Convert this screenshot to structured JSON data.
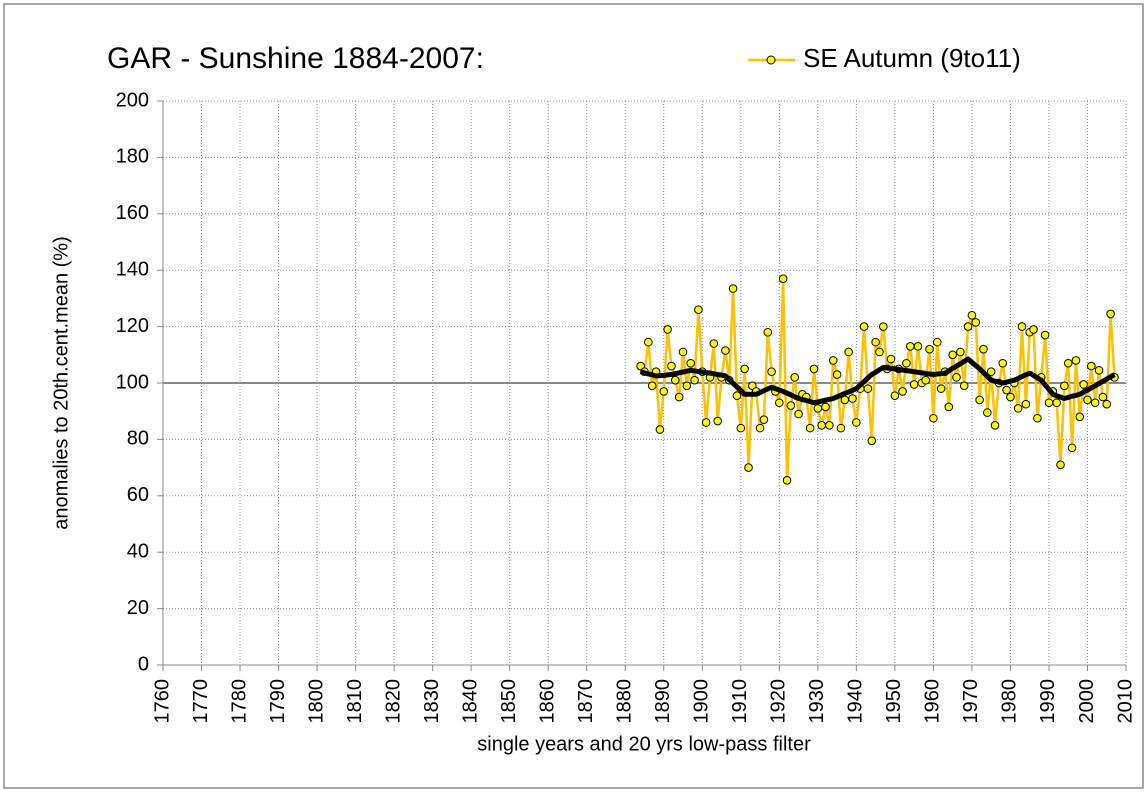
{
  "chart_data": {
    "type": "line",
    "title": "GAR - Sunshine 1884-2007:",
    "xlabel": "single years and 20 yrs low-pass filter",
    "ylabel": "anomalies to 20th.cent.mean (%)",
    "x": [
      1884,
      1885,
      1886,
      1887,
      1888,
      1889,
      1890,
      1891,
      1892,
      1893,
      1894,
      1895,
      1896,
      1897,
      1898,
      1899,
      1900,
      1901,
      1902,
      1903,
      1904,
      1905,
      1906,
      1907,
      1908,
      1909,
      1910,
      1911,
      1912,
      1913,
      1914,
      1915,
      1916,
      1917,
      1918,
      1919,
      1920,
      1921,
      1922,
      1923,
      1924,
      1925,
      1926,
      1927,
      1928,
      1929,
      1930,
      1931,
      1932,
      1933,
      1934,
      1935,
      1936,
      1937,
      1938,
      1939,
      1940,
      1941,
      1942,
      1943,
      1944,
      1945,
      1946,
      1947,
      1948,
      1949,
      1950,
      1951,
      1952,
      1953,
      1954,
      1955,
      1956,
      1957,
      1958,
      1959,
      1960,
      1961,
      1962,
      1963,
      1964,
      1965,
      1966,
      1967,
      1968,
      1969,
      1970,
      1971,
      1972,
      1973,
      1974,
      1975,
      1976,
      1977,
      1978,
      1979,
      1980,
      1981,
      1982,
      1983,
      1984,
      1985,
      1986,
      1987,
      1988,
      1989,
      1990,
      1991,
      1992,
      1993,
      1994,
      1995,
      1996,
      1997,
      1998,
      1999,
      2000,
      2001,
      2002,
      2003,
      2004,
      2005,
      2006,
      2007
    ],
    "series": [
      {
        "name": "SE Autumn (9to11)",
        "color": "#ffc000",
        "marker_color": "#ffff00",
        "markers": true,
        "values": [
          106,
          104,
          114.5,
          99,
          104,
          83.5,
          97,
          119,
          106,
          101,
          95,
          111,
          99,
          107,
          101,
          126,
          104,
          86,
          102,
          114,
          86.5,
          102,
          111.5,
          101,
          133.5,
          95.5,
          84,
          105,
          70,
          99,
          97,
          84,
          87,
          118,
          104,
          97,
          93,
          137,
          65.5,
          92,
          102,
          89,
          96,
          95,
          84,
          105,
          91,
          85,
          91.5,
          85,
          108,
          103,
          84,
          94,
          111,
          94.5,
          86,
          98,
          120,
          98,
          79.5,
          114.5,
          111,
          120,
          105,
          108.5,
          95.5,
          105,
          97,
          107,
          113,
          99.5,
          113,
          100,
          101,
          112,
          87.5,
          114.5,
          98,
          104,
          91.5,
          110,
          102,
          111,
          99,
          120,
          124,
          121.5,
          94,
          112,
          89.5,
          104,
          85,
          100,
          107,
          97.5,
          95,
          100,
          91,
          120,
          92.5,
          118,
          119,
          87.5,
          102,
          117,
          93,
          97,
          93,
          71,
          99,
          107,
          77,
          108,
          88,
          99.5,
          94,
          106,
          93,
          104.5,
          95,
          92.5,
          124.5,
          102
        ]
      },
      {
        "color": "#000000",
        "markers": false,
        "values": [
          104,
          103.6,
          103.2,
          102.9,
          102.5,
          102.6,
          102.7,
          102.9,
          103,
          103.3,
          103.6,
          103.9,
          104.2,
          104.5,
          104.3,
          104.1,
          103.9,
          103.7,
          103.5,
          103.3,
          103,
          102.8,
          102.5,
          101.2,
          99.9,
          98.6,
          97.3,
          96,
          96,
          96,
          96,
          96.6,
          97.3,
          97.9,
          98.5,
          98,
          97.5,
          97,
          96.4,
          95.8,
          95.1,
          94.5,
          94.1,
          93.8,
          93.4,
          93,
          93.3,
          93.6,
          93.9,
          94.2,
          94.5,
          95.1,
          95.7,
          96.3,
          96.8,
          97.4,
          98,
          99.3,
          100.5,
          101.8,
          103,
          103.8,
          104.7,
          105.5,
          105.3,
          105.2,
          105,
          104.8,
          104.6,
          104.4,
          104.2,
          104,
          103.8,
          103.6,
          103.4,
          103.2,
          103,
          103.2,
          103.3,
          103.5,
          104.3,
          105.2,
          106,
          106.8,
          107.7,
          108.5,
          107.3,
          106.2,
          105,
          103.7,
          102.3,
          101,
          100.7,
          100.3,
          100,
          100.3,
          100.7,
          101,
          101.6,
          102.3,
          102.9,
          103.5,
          102.7,
          101.8,
          101,
          99.3,
          97.7,
          96,
          95.5,
          95,
          94.5,
          94.9,
          95.3,
          95.6,
          96,
          96.8,
          97.5,
          98.3,
          99,
          99.8,
          100.6,
          101.4,
          102.2,
          103
        ]
      }
    ],
    "xlim": [
      1760,
      2010
    ],
    "xticks": [
      1760,
      1770,
      1780,
      1790,
      1800,
      1810,
      1820,
      1830,
      1840,
      1850,
      1860,
      1870,
      1880,
      1890,
      1900,
      1910,
      1920,
      1930,
      1940,
      1950,
      1960,
      1970,
      1980,
      1990,
      2000,
      2010
    ],
    "ylim": [
      0,
      200
    ],
    "yticks": [
      0,
      20,
      40,
      60,
      80,
      100,
      120,
      140,
      160,
      180,
      200
    ],
    "reference_line": 100,
    "grid": true,
    "legend": "top-right"
  }
}
